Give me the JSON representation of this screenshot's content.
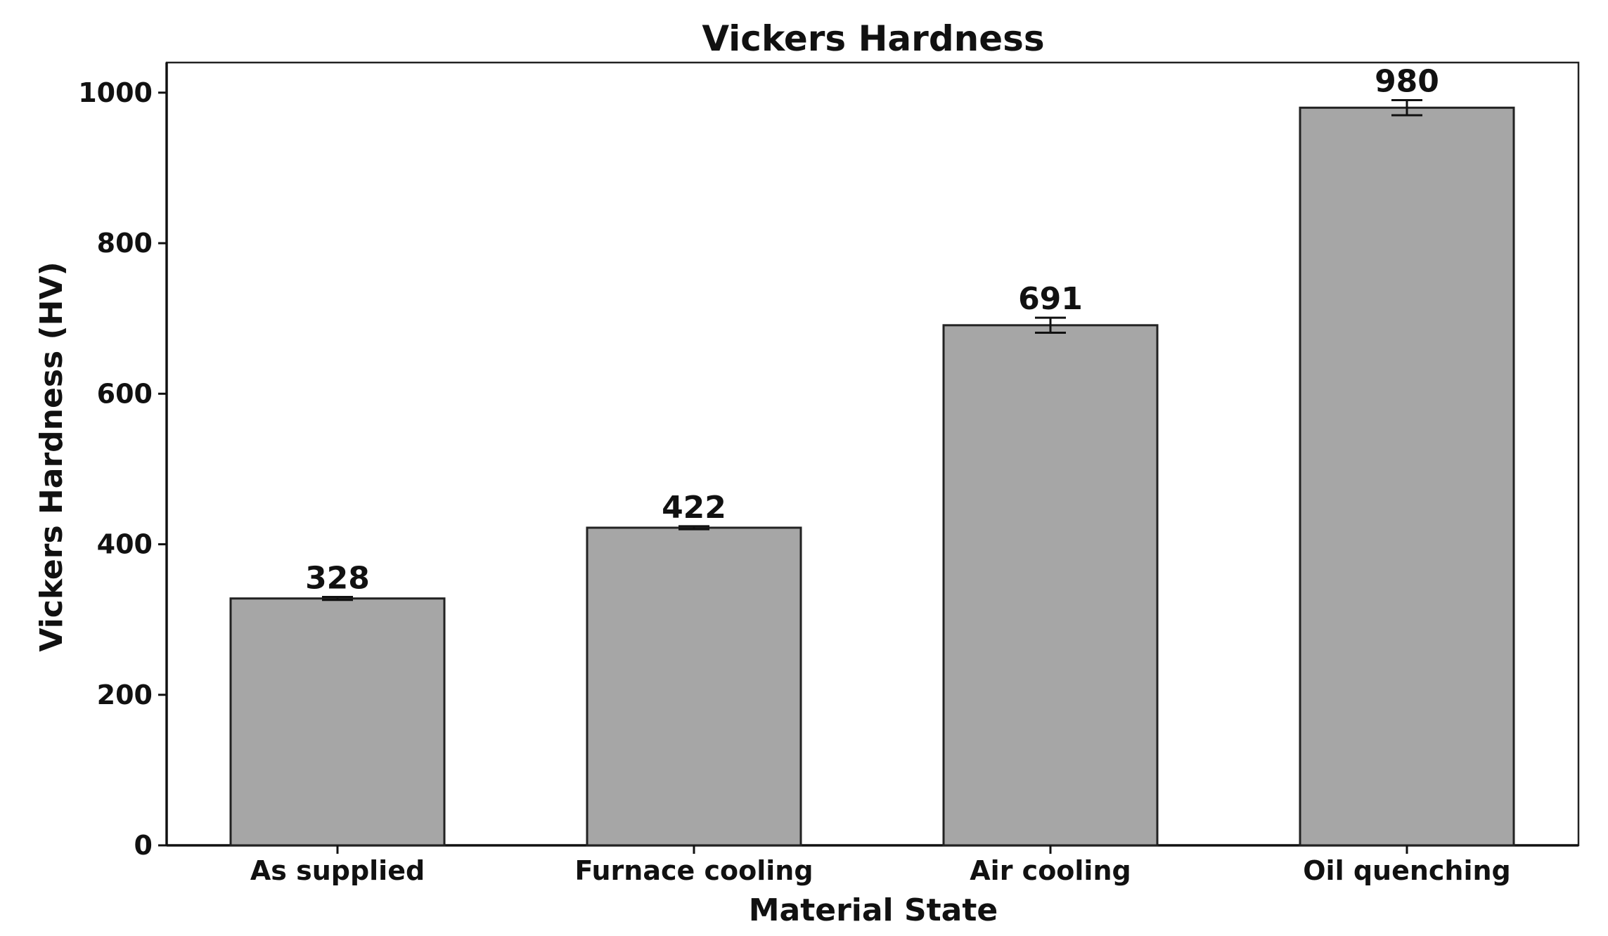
{
  "chart_data": {
    "type": "bar",
    "title": "Vickers Hardness",
    "xlabel": "Material State",
    "ylabel": "Vickers Hardness (HV)",
    "categories": [
      "As supplied",
      "Furnace cooling",
      "Air cooling",
      "Oil quenching"
    ],
    "values": [
      328,
      422,
      691,
      980
    ],
    "value_labels": [
      "328",
      "422",
      "691",
      "980"
    ],
    "errors": [
      2,
      2,
      10,
      10
    ],
    "ylim": [
      0,
      1040
    ],
    "yticks": [
      0,
      200,
      400,
      600,
      800,
      1000
    ],
    "ytick_labels": [
      "0",
      "200",
      "400",
      "600",
      "800",
      "1000"
    ],
    "grid": false,
    "bar_color": "#a6a6a6",
    "edge_color": "#222222"
  }
}
